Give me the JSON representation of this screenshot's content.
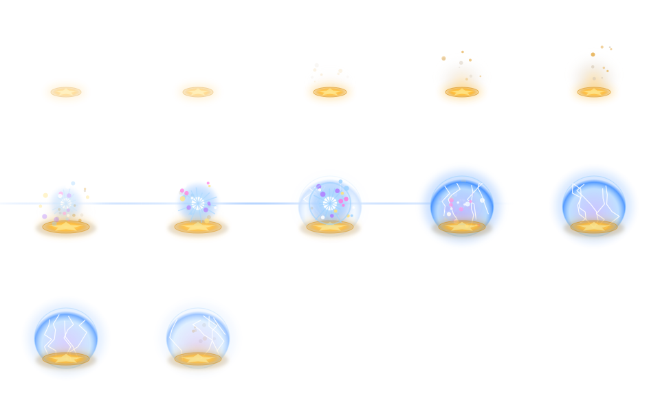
{
  "sprite_sheet": {
    "columns": 5,
    "rows": 3,
    "frame_count": 12,
    "colors": {
      "gold": "#ffb21c",
      "gold_light": "#ffe27a",
      "gold_dark": "#d98a00",
      "smoke": "#c9b8a0",
      "blue": "#3c8cff",
      "blue_light": "#9fd2ff",
      "purple": "#b07cff",
      "white": "#ffffff"
    },
    "frames": [
      {
        "index": 1,
        "phase": "seal-faint",
        "seal": 0.45,
        "smoke": 0.0,
        "burst": 0.0,
        "shield": 0.0
      },
      {
        "index": 2,
        "phase": "seal-faint",
        "seal": 0.5,
        "smoke": 0.0,
        "burst": 0.0,
        "shield": 0.0
      },
      {
        "index": 3,
        "phase": "seal-glow",
        "seal": 0.85,
        "smoke": 0.15,
        "burst": 0.0,
        "shield": 0.0
      },
      {
        "index": 4,
        "phase": "smoke-rise",
        "seal": 0.9,
        "smoke": 0.55,
        "burst": 0.0,
        "shield": 0.0
      },
      {
        "index": 5,
        "phase": "smoke-rise",
        "seal": 0.85,
        "smoke": 0.75,
        "burst": 0.0,
        "shield": 0.0
      },
      {
        "index": 6,
        "phase": "spark",
        "seal": 0.85,
        "smoke": 0.5,
        "burst": 0.45,
        "shield": 0.0
      },
      {
        "index": 7,
        "phase": "burst",
        "seal": 0.8,
        "smoke": 0.3,
        "burst": 0.85,
        "shield": 0.0
      },
      {
        "index": 8,
        "phase": "burst",
        "seal": 0.8,
        "smoke": 0.25,
        "burst": 1.0,
        "shield": 0.15
      },
      {
        "index": 9,
        "phase": "shield-full",
        "seal": 0.85,
        "smoke": 0.0,
        "burst": 0.15,
        "shield": 1.0
      },
      {
        "index": 10,
        "phase": "shield",
        "seal": 0.85,
        "smoke": 0.0,
        "burst": 0.0,
        "shield": 0.85
      },
      {
        "index": 11,
        "phase": "shield",
        "seal": 0.85,
        "smoke": 0.0,
        "burst": 0.0,
        "shield": 0.7
      },
      {
        "index": 12,
        "phase": "shield-fade",
        "seal": 0.8,
        "smoke": 0.35,
        "burst": 0.0,
        "shield": 0.45
      }
    ]
  }
}
